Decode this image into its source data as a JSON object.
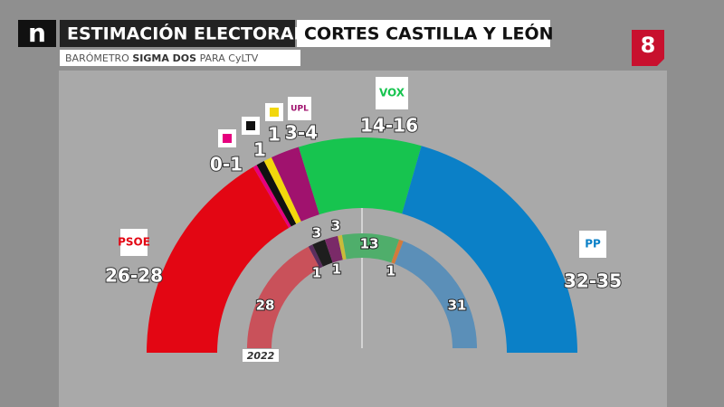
{
  "channel": "n",
  "header": {
    "title": "ESTIMACIÓN ELECTORAL",
    "subtitle": "CORTES CASTILLA Y LEÓN",
    "source": [
      "BARÓMETRO ",
      "SIGMA DOS",
      " PARA CyLTV"
    ],
    "badge": "8"
  },
  "chart_data": {
    "type": "hemicycle",
    "estimate": [
      {
        "name": "PSOE",
        "color": "#e30613",
        "min": 26,
        "max": 28,
        "label": "26-28"
      },
      {
        "color": "#e6007e",
        "min": 0,
        "max": 1,
        "label": "0-1"
      },
      {
        "color": "#111111",
        "min": 1,
        "max": 1,
        "label": "1"
      },
      {
        "color": "#f2d70c",
        "min": 1,
        "max": 1,
        "label": "1"
      },
      {
        "name": "UPL",
        "color": "#a0126e",
        "min": 3,
        "max": 4,
        "label": "3-4"
      },
      {
        "name": "VOX",
        "color": "#17c44f",
        "min": 14,
        "max": 16,
        "label": "14-16"
      },
      {
        "name": "PP",
        "color": "#0b80c7",
        "min": 32,
        "max": 35,
        "label": "32-35"
      }
    ],
    "previous": {
      "year": "2022",
      "values": [
        28,
        1,
        3,
        3,
        1,
        13,
        1,
        31
      ],
      "colors": [
        "#c9515a",
        "#5b2e5e",
        "#1e1e1e",
        "#7a2a68",
        "#c9bb3a",
        "#4fae6b",
        "#d27b3c",
        "#5b8fb8"
      ]
    }
  }
}
